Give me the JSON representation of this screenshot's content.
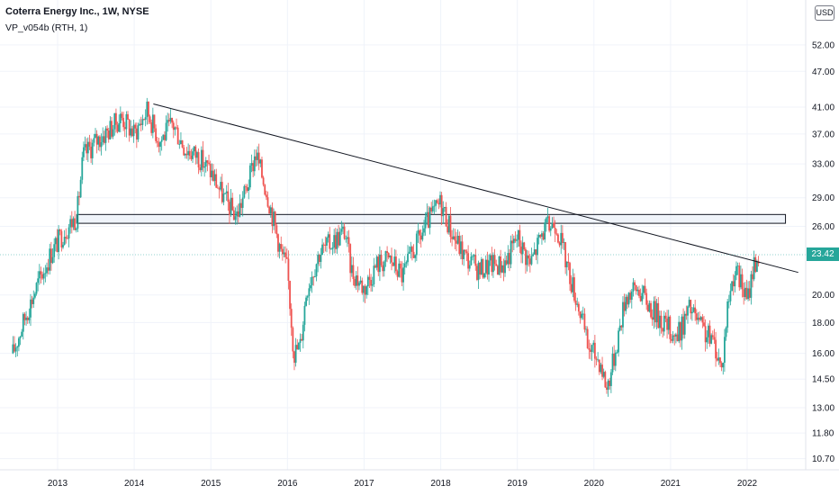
{
  "header": {
    "title": "Coterra Energy Inc., 1W, NYSE",
    "indicator": "VP_v054b (RTH, 1)"
  },
  "price_scale": {
    "currency": "USD",
    "last_price": "23.42"
  },
  "colors": {
    "up": "#26a69a",
    "down": "#ef5350",
    "trendline": "#131722",
    "zone_fill": "#e3ebf5",
    "zone_border": "#131722",
    "grid": "#f0f3fa"
  },
  "chart_data": {
    "type": "candlestick",
    "title": "Coterra Energy Inc., 1W, NYSE",
    "y_scale": "log",
    "ylim": [
      9.9,
      60
    ],
    "y_ticks": [
      "52.00",
      "47.00",
      "41.00",
      "37.00",
      "33.00",
      "29.00",
      "26.00",
      "23.42",
      "20.00",
      "18.00",
      "16.00",
      "14.50",
      "13.00",
      "11.80",
      "10.70"
    ],
    "x_ticks": [
      "2013",
      "2014",
      "2015",
      "2016",
      "2017",
      "2018",
      "2019",
      "2020",
      "2021",
      "2022"
    ],
    "xlim": [
      "2012-05",
      "2022-10"
    ],
    "grid": true,
    "close_path": [
      [
        "2012-06",
        16.0
      ],
      [
        "2012-08",
        18.5
      ],
      [
        "2012-10",
        21.0
      ],
      [
        "2012-12",
        23.5
      ],
      [
        "2013-02",
        25.5
      ],
      [
        "2013-04",
        27.0
      ],
      [
        "2013-05",
        34.0
      ],
      [
        "2013-07",
        36.0
      ],
      [
        "2013-09",
        37.5
      ],
      [
        "2013-11",
        39.5
      ],
      [
        "2014-01",
        37.0
      ],
      [
        "2014-03",
        40.5
      ],
      [
        "2014-05",
        36.0
      ],
      [
        "2014-07",
        38.5
      ],
      [
        "2014-09",
        35.0
      ],
      [
        "2014-11",
        34.0
      ],
      [
        "2015-01",
        32.0
      ],
      [
        "2015-03",
        29.0
      ],
      [
        "2015-05",
        27.0
      ],
      [
        "2015-07",
        31.0
      ],
      [
        "2015-08",
        34.5
      ],
      [
        "2015-10",
        29.0
      ],
      [
        "2015-12",
        23.5
      ],
      [
        "2016-01",
        22.0
      ],
      [
        "2016-02",
        16.0
      ],
      [
        "2016-03",
        16.5
      ],
      [
        "2016-04",
        20.5
      ],
      [
        "2016-06",
        23.5
      ],
      [
        "2016-08",
        24.5
      ],
      [
        "2016-10",
        25.5
      ],
      [
        "2016-11",
        22.0
      ],
      [
        "2017-01",
        20.5
      ],
      [
        "2017-03",
        22.5
      ],
      [
        "2017-05",
        23.0
      ],
      [
        "2017-07",
        21.5
      ],
      [
        "2017-09",
        24.0
      ],
      [
        "2017-11",
        26.5
      ],
      [
        "2018-01",
        28.5
      ],
      [
        "2018-03",
        25.0
      ],
      [
        "2018-05",
        23.0
      ],
      [
        "2018-07",
        22.0
      ],
      [
        "2018-09",
        22.5
      ],
      [
        "2018-11",
        22.5
      ],
      [
        "2019-01",
        25.0
      ],
      [
        "2019-03",
        22.5
      ],
      [
        "2019-05",
        25.5
      ],
      [
        "2019-07",
        26.5
      ],
      [
        "2019-09",
        22.0
      ],
      [
        "2019-11",
        18.5
      ],
      [
        "2019-12",
        16.5
      ],
      [
        "2020-02",
        15.5
      ],
      [
        "2020-03",
        14.0
      ],
      [
        "2020-04",
        15.5
      ],
      [
        "2020-06",
        20.0
      ],
      [
        "2020-08",
        20.5
      ],
      [
        "2020-10",
        19.0
      ],
      [
        "2020-12",
        18.0
      ],
      [
        "2021-02",
        17.0
      ],
      [
        "2021-04",
        19.0
      ],
      [
        "2021-06",
        17.5
      ],
      [
        "2021-08",
        16.5
      ],
      [
        "2021-09",
        15.0
      ],
      [
        "2021-10",
        19.5
      ],
      [
        "2021-11",
        22.0
      ],
      [
        "2021-12",
        21.0
      ],
      [
        "2022-01",
        19.5
      ],
      [
        "2022-02",
        22.5
      ],
      [
        "2022-03",
        23.42
      ]
    ],
    "trendline": [
      [
        "2014-04",
        41.5
      ],
      [
        "2022-09",
        21.8
      ]
    ],
    "horizontal_zone": {
      "from": "2013-04",
      "to": "2022-07",
      "low": 26.3,
      "high": 27.2
    },
    "last_price": 23.42
  }
}
